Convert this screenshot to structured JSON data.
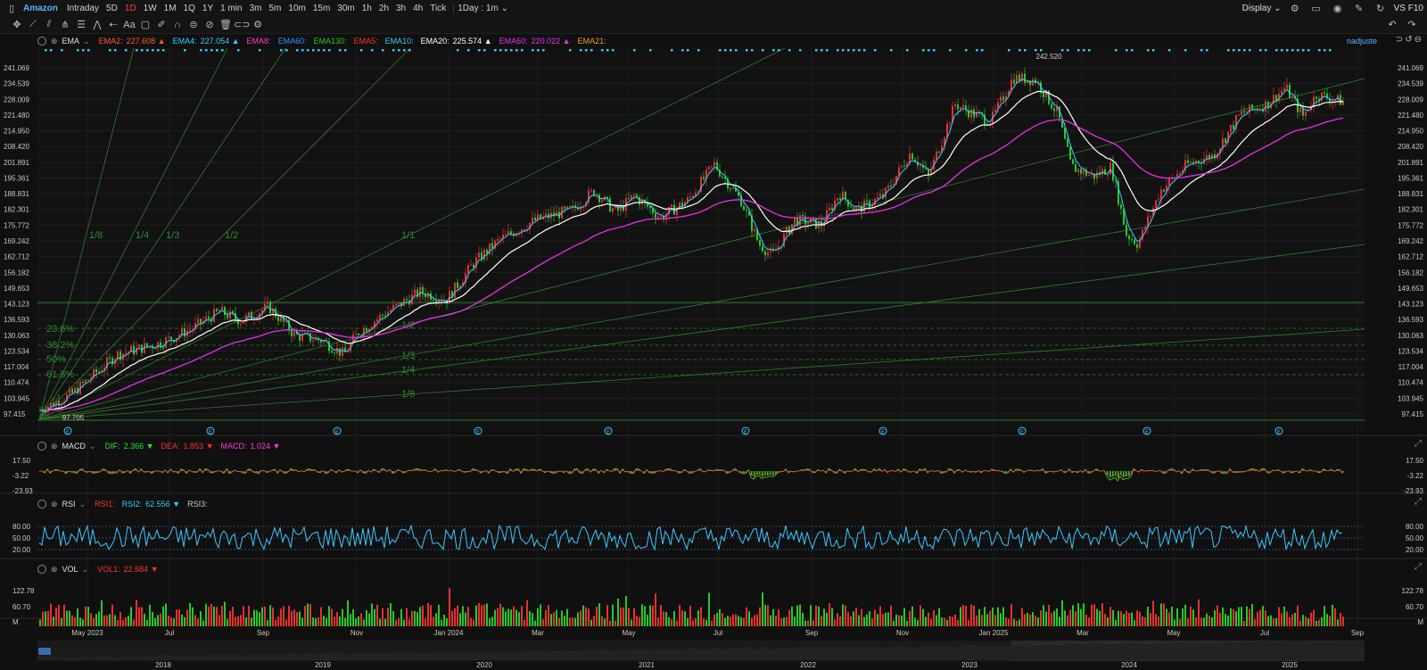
{
  "topbar": {
    "symbol": "Amazon",
    "timeframes": [
      "Intraday",
      "5D",
      "1D",
      "1W",
      "1M",
      "1Q",
      "1Y",
      "1 min",
      "3m",
      "5m",
      "10m",
      "15m",
      "30m",
      "1h",
      "2h",
      "3h",
      "4h",
      "Tick"
    ],
    "active_timeframe": "1D",
    "interval_select": "1Day : 1m",
    "display_label": "Display",
    "vs_label": "VS F10"
  },
  "main_legend": {
    "name": "EMA",
    "items": [
      {
        "label": "EMA2:",
        "value": "227.608",
        "color": "#ff5a28",
        "arrow": "▲"
      },
      {
        "label": "EMA4:",
        "value": "227.054",
        "color": "#3cc8ff",
        "arrow": "▲"
      },
      {
        "label": "EMA8:",
        "value": "",
        "color": "#ff3cd2",
        "arrow": ""
      },
      {
        "label": "EMA60:",
        "value": "",
        "color": "#3c8cff",
        "arrow": ""
      },
      {
        "label": "EMA130:",
        "value": "",
        "color": "#28c828",
        "arrow": ""
      },
      {
        "label": "EMA5:",
        "value": "",
        "color": "#ff3232",
        "arrow": ""
      },
      {
        "label": "EMA10:",
        "value": "",
        "color": "#3cc8ff",
        "arrow": ""
      },
      {
        "label": "EMA20:",
        "value": "225.574",
        "color": "#ffffff",
        "arrow": "▲"
      },
      {
        "label": "EMA60:",
        "value": "220.022",
        "color": "#e632e6",
        "arrow": "▲"
      },
      {
        "label": "EMA21:",
        "value": "",
        "color": "#e6a028",
        "arrow": ""
      }
    ],
    "adjust_label": "nadjuste"
  },
  "price_axis": [
    "241.069",
    "234.539",
    "228.009",
    "221.480",
    "214.950",
    "208.420",
    "201.891",
    "195.361",
    "188.831",
    "182.301",
    "175.772",
    "169.242",
    "162.712",
    "156.182",
    "149.653",
    "143.123",
    "136.593",
    "130.063",
    "123.534",
    "117.004",
    "110.474",
    "103.945",
    "97.415"
  ],
  "price_markers": {
    "high": "242.520",
    "low": "97.705"
  },
  "fan_labels": [
    "1/8",
    "1/4",
    "1/3",
    "1/2",
    "1/1",
    "1/2",
    "1/3",
    "1/4",
    "1/8"
  ],
  "fib_labels": [
    "23.6%",
    "38.2%",
    "50%",
    "61.8%"
  ],
  "macd": {
    "name": "MACD",
    "items": [
      {
        "label": "DIF:",
        "value": "2.366",
        "color": "#28e628",
        "arrow": "▼"
      },
      {
        "label": "DEA:",
        "value": "1.853",
        "color": "#ff3232",
        "arrow": "▼"
      },
      {
        "label": "MACD:",
        "value": "1.024",
        "color": "#ff3cd2",
        "arrow": "▼"
      }
    ],
    "axis": [
      "17.50",
      "-3.22",
      "-23.93"
    ]
  },
  "rsi": {
    "name": "RSI",
    "items": [
      {
        "label": "RSI1:",
        "value": "",
        "color": "#ff3232",
        "arrow": ""
      },
      {
        "label": "RSI2:",
        "value": "62.556",
        "color": "#3cc8ff",
        "arrow": "▼"
      },
      {
        "label": "RSI3:",
        "value": "",
        "color": "#c8c8c8",
        "arrow": ""
      }
    ],
    "axis": [
      "80.00",
      "50.00",
      "20.00"
    ]
  },
  "vol": {
    "name": "VOL",
    "items": [
      {
        "label": "VOL1:",
        "value": "22.684",
        "color": "#ff3232",
        "arrow": "▼"
      }
    ],
    "axis": [
      "122.78",
      "60.70",
      "M"
    ]
  },
  "time_axis": [
    "May 2023",
    "Jul",
    "Sep",
    "Nov",
    "Jan 2024",
    "Mar",
    "May",
    "Jul",
    "Sep",
    "Nov",
    "Jan 2025",
    "Mar",
    "May",
    "Jul",
    "Sep"
  ],
  "overview_years": [
    "2018",
    "2019",
    "2020",
    "2021",
    "2022",
    "2023",
    "2024",
    "2025"
  ],
  "event_marker": "E"
}
